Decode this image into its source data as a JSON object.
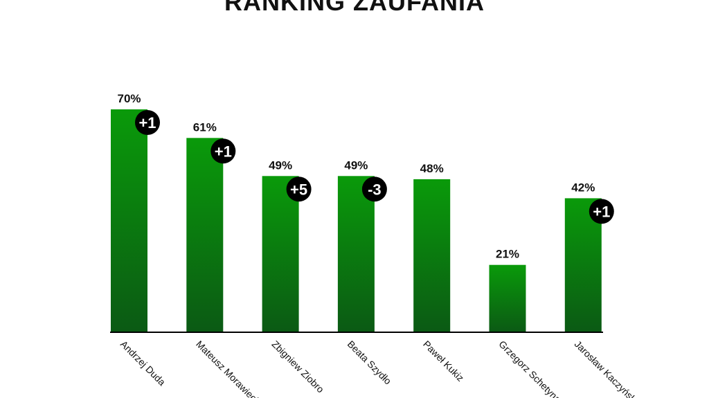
{
  "chart_data": {
    "type": "bar",
    "title": "RANKING ZAUFANIA",
    "xlabel": "",
    "ylabel": "",
    "ylim": [
      0,
      70
    ],
    "grid": false,
    "categories": [
      "Andrzej Duda",
      "Mateusz Morawiecki",
      "Zbigniew Ziobro",
      "Beata Szydło",
      "Paweł Kukiz",
      "Grzegorz Schetyna",
      "Jarosław Kaczyński"
    ],
    "values": [
      70,
      61,
      49,
      49,
      48,
      21,
      42
    ],
    "value_labels": [
      "70%",
      "61%",
      "49%",
      "49%",
      "48%",
      "21%",
      "42%"
    ],
    "changes": [
      "+1",
      "+1",
      "+5",
      "-3",
      "",
      "",
      "+1"
    ]
  },
  "colors": {
    "bar_top": "#0a9a0a",
    "bar_bottom": "#0b5a14",
    "badge": "#000000",
    "badge_text": "#ffffff",
    "axis": "#000000",
    "text": "#111111"
  }
}
